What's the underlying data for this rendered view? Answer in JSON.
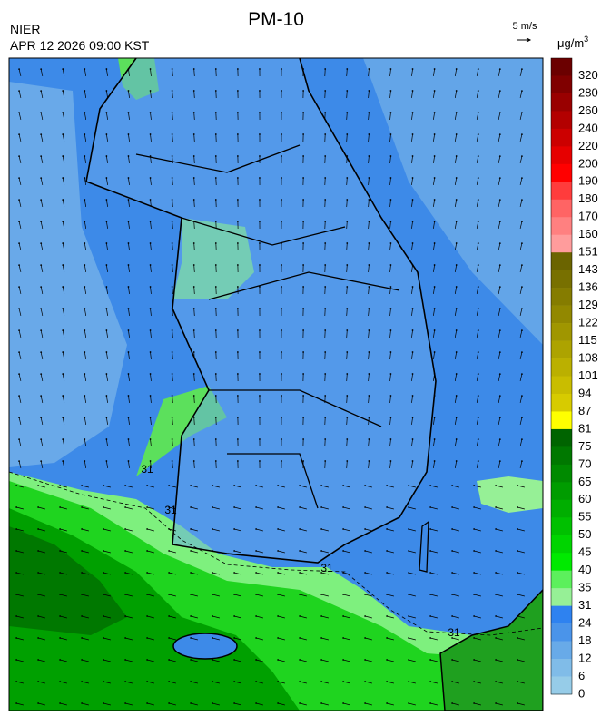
{
  "header": {
    "title": "PM-10",
    "agency": "NIER",
    "timestamp": "APR 12 2026 09:00 KST",
    "wind_scale": "5 m/s",
    "unit": "μg/m",
    "unit_exponent": "3"
  },
  "colorbar": {
    "labels": [
      "320",
      "280",
      "260",
      "240",
      "220",
      "200",
      "190",
      "180",
      "170",
      "160",
      "151",
      "143",
      "136",
      "129",
      "122",
      "115",
      "108",
      "101",
      "94",
      "87",
      "81",
      "75",
      "70",
      "65",
      "60",
      "55",
      "50",
      "45",
      "40",
      "35",
      "31",
      "24",
      "18",
      "12",
      "6",
      "0"
    ],
    "colors": [
      "#6b0000",
      "#800000",
      "#990000",
      "#b30000",
      "#cc0000",
      "#e60000",
      "#ff0000",
      "#ff3c3c",
      "#ff6464",
      "#ff8080",
      "#ff9c9c",
      "#6b6400",
      "#787000",
      "#857c00",
      "#928800",
      "#a09600",
      "#ada300",
      "#bbb000",
      "#c9bd00",
      "#d7cb00",
      "#ffff00",
      "#006400",
      "#007800",
      "#008a00",
      "#009c00",
      "#00ae00",
      "#00c000",
      "#00d400",
      "#00ea00",
      "#5cf05c",
      "#96f096",
      "#2e82f0",
      "#4a94ea",
      "#68aae8",
      "#80bce8",
      "#96cce8"
    ]
  },
  "contour_labels": [
    "31",
    "31",
    "31",
    "31"
  ]
}
